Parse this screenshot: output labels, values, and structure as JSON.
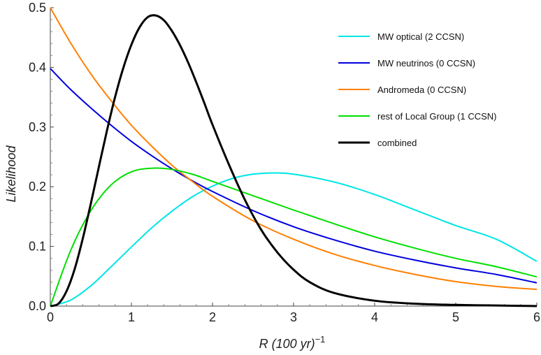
{
  "chart_data": {
    "type": "line",
    "title": "",
    "xlabel": {
      "var": "R",
      "unit": "(100 yr)",
      "exp": "−1"
    },
    "ylabel": "Likelihood",
    "xlim": [
      0,
      6
    ],
    "ylim": [
      0,
      0.5
    ],
    "xticks": [
      "0",
      "1",
      "2",
      "3",
      "4",
      "5",
      "6"
    ],
    "yticks": [
      "0.0",
      "0.1",
      "0.2",
      "0.3",
      "0.4",
      "0.5"
    ],
    "xtick_values": [
      0,
      1,
      2,
      3,
      4,
      5,
      6
    ],
    "ytick_values": [
      0,
      0.1,
      0.2,
      0.3,
      0.4,
      0.5
    ],
    "grid": false,
    "legend_position": "top-right",
    "series": [
      {
        "name": "MW optical (2 CCSN)",
        "color": "#00e5e5",
        "x": [
          0,
          0.25,
          0.5,
          0.75,
          1,
          1.25,
          1.5,
          1.75,
          2,
          2.25,
          2.5,
          2.75,
          3,
          3.5,
          4,
          4.5,
          5,
          5.5,
          6
        ],
        "y": [
          0,
          0.01,
          0.034,
          0.066,
          0.099,
          0.131,
          0.159,
          0.183,
          0.201,
          0.214,
          0.221,
          0.223,
          0.221,
          0.208,
          0.187,
          0.161,
          0.135,
          0.112,
          0.075
        ]
      },
      {
        "name": "MW neutrinos (0 CCSN)",
        "color": "#0000dd",
        "x": [
          0,
          0.25,
          0.5,
          0.75,
          1,
          1.25,
          1.5,
          1.75,
          2,
          2.5,
          3,
          3.5,
          4,
          4.5,
          5,
          5.5,
          6
        ],
        "y": [
          0.398,
          0.363,
          0.332,
          0.303,
          0.276,
          0.252,
          0.23,
          0.21,
          0.192,
          0.16,
          0.133,
          0.111,
          0.092,
          0.077,
          0.064,
          0.053,
          0.039
        ]
      },
      {
        "name": "Andromeda (0 CCSN)",
        "color": "#ff8000",
        "x": [
          0,
          0.25,
          0.5,
          0.75,
          1,
          1.25,
          1.5,
          1.75,
          2,
          2.5,
          3,
          3.5,
          4,
          4.5,
          5,
          5.5,
          6
        ],
        "y": [
          0.5,
          0.441,
          0.389,
          0.344,
          0.303,
          0.268,
          0.236,
          0.209,
          0.184,
          0.143,
          0.112,
          0.087,
          0.068,
          0.053,
          0.041,
          0.033,
          0.028
        ]
      },
      {
        "name": "rest of Local Group (1 CCSN)",
        "color": "#00e000",
        "x": [
          0,
          0.25,
          0.5,
          0.75,
          1,
          1.25,
          1.5,
          1.75,
          2,
          2.5,
          3,
          3.5,
          4,
          4.5,
          5,
          5.5,
          6
        ],
        "y": [
          0,
          0.093,
          0.16,
          0.203,
          0.225,
          0.231,
          0.229,
          0.221,
          0.209,
          0.185,
          0.161,
          0.138,
          0.116,
          0.097,
          0.08,
          0.066,
          0.049
        ]
      },
      {
        "name": "combined",
        "color": "#000000",
        "x": [
          0,
          0.1,
          0.2,
          0.3,
          0.4,
          0.5,
          0.6,
          0.7,
          0.8,
          0.9,
          1.0,
          1.1,
          1.2,
          1.3,
          1.4,
          1.5,
          1.6,
          1.7,
          1.8,
          1.9,
          2.0,
          2.2,
          2.4,
          2.6,
          2.8,
          3.0,
          3.2,
          3.5,
          4.0,
          4.5,
          5.0,
          5.5,
          6.0
        ],
        "y": [
          0,
          0.004,
          0.025,
          0.062,
          0.113,
          0.172,
          0.234,
          0.295,
          0.351,
          0.399,
          0.438,
          0.467,
          0.484,
          0.487,
          0.479,
          0.461,
          0.437,
          0.408,
          0.375,
          0.34,
          0.304,
          0.238,
          0.178,
          0.128,
          0.09,
          0.061,
          0.04,
          0.022,
          0.009,
          0.004,
          0.002,
          0.001,
          0.0
        ]
      }
    ]
  }
}
